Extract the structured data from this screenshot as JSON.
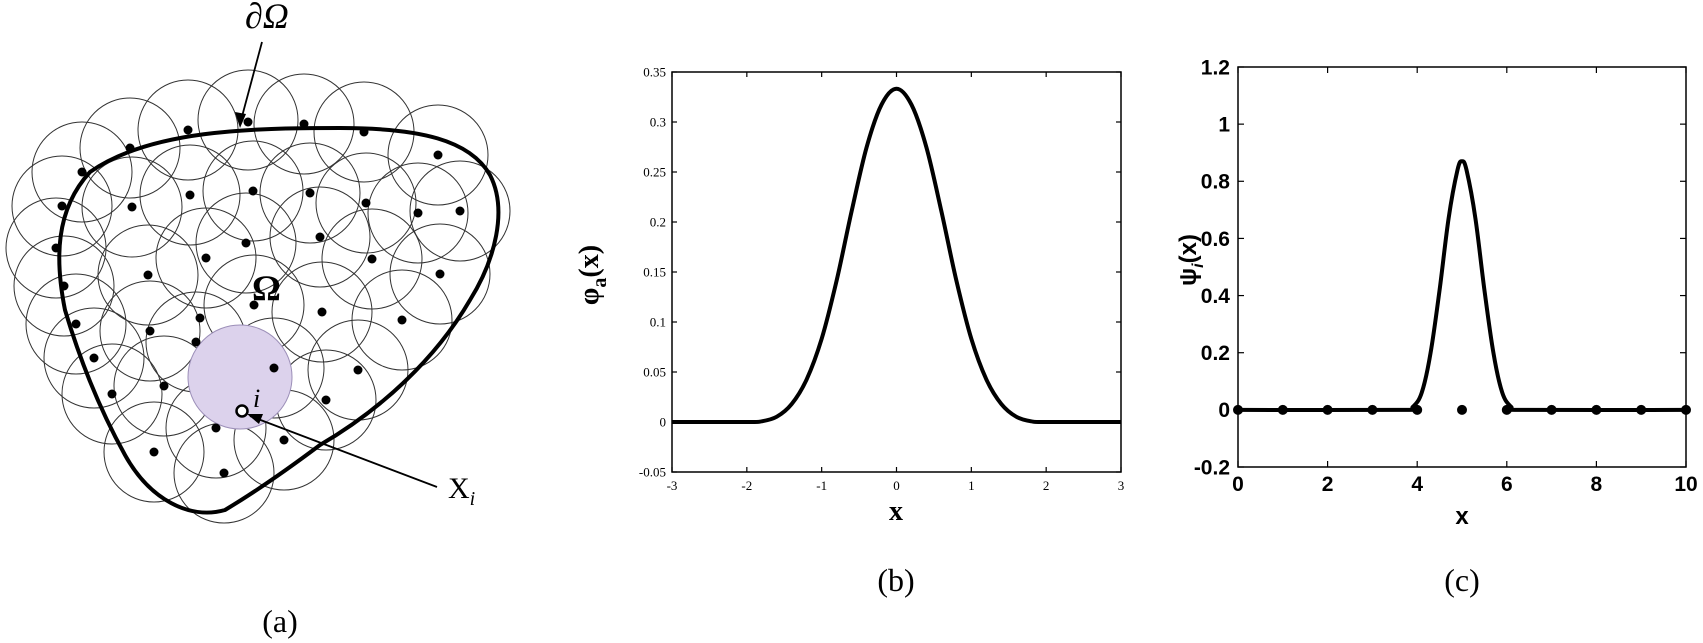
{
  "panel_a": {
    "caption": "(a)",
    "boundary_label": "∂Ω",
    "domain_label": "Ω",
    "node_label": "i",
    "point_label": "X",
    "point_label_sub": "i",
    "highlight_color": "#dcd2ec"
  },
  "panel_b": {
    "caption": "(b)"
  },
  "panel_c": {
    "caption": "(c)"
  },
  "chart_data": [
    {
      "type": "line",
      "title": "",
      "xlabel": "x",
      "ylabel_main": "φ",
      "ylabel_sub": "a",
      "ylabel_tail": "(x)",
      "xlim": [
        -3,
        3
      ],
      "ylim": [
        -0.05,
        0.35
      ],
      "xticks": [
        -3,
        -2,
        -1,
        0,
        1,
        2,
        3
      ],
      "yticks": [
        -0.05,
        0,
        0.05,
        0.1,
        0.15,
        0.2,
        0.25,
        0.3,
        0.35
      ],
      "xtick_labels": [
        "-3",
        "-2",
        "-1",
        "0",
        "1",
        "2",
        "3"
      ],
      "ytick_labels": [
        "-0.05",
        "0",
        "0.05",
        "0.1",
        "0.15",
        "0.2",
        "0.25",
        "0.3",
        "0.35"
      ],
      "grid": false,
      "series": [
        {
          "curve": "cubic-spline kernel, support [-2, 2], peak at x=0",
          "x": [
            -3,
            -2,
            -1.8,
            -1.6,
            -1.4,
            -1.2,
            -1.0,
            -0.8,
            -0.6,
            -0.4,
            -0.2,
            0,
            0.2,
            0.4,
            0.6,
            0.8,
            1.0,
            1.2,
            1.4,
            1.6,
            1.8,
            2,
            3
          ],
          "y": [
            0,
            0,
            0.0007,
            0.0053,
            0.018,
            0.0427,
            0.0833,
            0.1413,
            0.2107,
            0.2747,
            0.3173,
            0.3333,
            0.3173,
            0.2747,
            0.2107,
            0.1413,
            0.0833,
            0.0427,
            0.018,
            0.0053,
            0.0007,
            0,
            0
          ]
        }
      ]
    },
    {
      "type": "line",
      "title": "",
      "xlabel": "x",
      "ylabel_main": "ψ",
      "ylabel_sub": "i",
      "ylabel_tail": "(x)",
      "xlim": [
        0,
        10
      ],
      "ylim": [
        -0.2,
        1.2
      ],
      "xticks": [
        0,
        2,
        4,
        6,
        8,
        10
      ],
      "yticks": [
        -0.2,
        0,
        0.2,
        0.4,
        0.6,
        0.8,
        1,
        1.2
      ],
      "xtick_labels": [
        "0",
        "2",
        "4",
        "6",
        "8",
        "10"
      ],
      "ytick_labels": [
        "-0.2",
        "0",
        "0.2",
        "0.4",
        "0.6",
        "0.8",
        "1",
        "1.2"
      ],
      "grid": false,
      "series": [
        {
          "curve": "shape function peaked at x=5, support about [3.7, 6.3]",
          "x": [
            0,
            3.7,
            3.9,
            4.1,
            4.3,
            4.5,
            4.7,
            4.9,
            5.0,
            5.1,
            5.3,
            5.5,
            5.7,
            5.9,
            6.1,
            6.3,
            10
          ],
          "y": [
            0,
            0,
            0.01,
            0.06,
            0.2,
            0.42,
            0.67,
            0.84,
            0.87,
            0.84,
            0.67,
            0.42,
            0.2,
            0.06,
            0.01,
            0,
            0
          ]
        },
        {
          "curve": "nodes",
          "x": [
            0,
            1,
            2,
            3,
            4,
            5,
            6,
            7,
            8,
            9,
            10
          ],
          "y": [
            0,
            0,
            0,
            0,
            0,
            0,
            0,
            0,
            0,
            0,
            0
          ]
        }
      ]
    }
  ]
}
